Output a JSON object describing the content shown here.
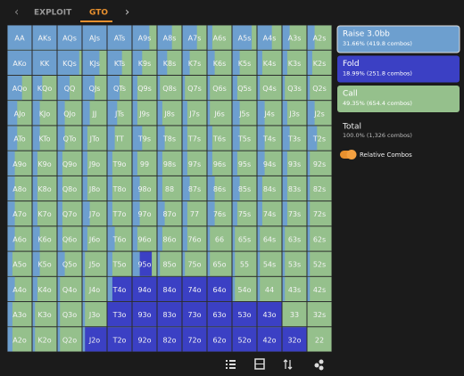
{
  "tabs": [
    "EXPLOIT",
    "GTO"
  ],
  "colors": {
    "raise": "#6d9fcf",
    "fold": "#3b40c4",
    "call": "#95c08c"
  },
  "grid": {
    "rows": [
      {
        "hands": [
          "AA",
          "AKs",
          "AQs",
          "AJs",
          "ATs",
          "A9s",
          "A8s",
          "A7s",
          "A6s",
          "A5s",
          "A4s",
          "A3s",
          "A2s"
        ],
        "raise": [
          100,
          100,
          100,
          100,
          100,
          70,
          60,
          60,
          20,
          80,
          60,
          30,
          30
        ],
        "fold": [
          0,
          0,
          0,
          0,
          0,
          0,
          0,
          0,
          0,
          0,
          0,
          0,
          0
        ]
      },
      {
        "hands": [
          "AKo",
          "KK",
          "KQs",
          "KJs",
          "KTs",
          "K9s",
          "K8s",
          "K7s",
          "K6s",
          "K5s",
          "K4s",
          "K3s",
          "K2s"
        ],
        "raise": [
          100,
          100,
          90,
          70,
          60,
          40,
          40,
          30,
          30,
          30,
          20,
          20,
          20
        ],
        "fold": [
          0,
          0,
          0,
          0,
          0,
          0,
          0,
          0,
          0,
          0,
          0,
          0,
          0
        ]
      },
      {
        "hands": [
          "AQo",
          "KQo",
          "QQ",
          "QJs",
          "QTs",
          "Q9s",
          "Q8s",
          "Q7s",
          "Q6s",
          "Q5s",
          "Q4s",
          "Q3s",
          "Q2s"
        ],
        "raise": [
          60,
          40,
          50,
          50,
          50,
          20,
          10,
          10,
          10,
          20,
          10,
          10,
          10
        ],
        "fold": [
          0,
          0,
          0,
          0,
          0,
          0,
          0,
          0,
          0,
          0,
          0,
          0,
          0
        ]
      },
      {
        "hands": [
          "AJo",
          "KJo",
          "QJo",
          "JJ",
          "JTs",
          "J9s",
          "J8s",
          "J7s",
          "J6s",
          "J5s",
          "J4s",
          "J3s",
          "J2s"
        ],
        "raise": [
          40,
          30,
          30,
          30,
          40,
          20,
          20,
          20,
          10,
          30,
          30,
          20,
          30
        ],
        "fold": [
          0,
          0,
          0,
          0,
          0,
          0,
          0,
          0,
          0,
          0,
          0,
          0,
          0
        ]
      },
      {
        "hands": [
          "ATo",
          "KTo",
          "QTo",
          "JTo",
          "TT",
          "T9s",
          "T8s",
          "T7s",
          "T6s",
          "T5s",
          "T4s",
          "T3s",
          "T2s"
        ],
        "raise": [
          40,
          30,
          30,
          20,
          30,
          40,
          30,
          20,
          20,
          30,
          30,
          30,
          40
        ],
        "fold": [
          0,
          0,
          0,
          0,
          0,
          0,
          0,
          0,
          0,
          0,
          0,
          0,
          0
        ]
      },
      {
        "hands": [
          "A9o",
          "K9o",
          "Q9o",
          "J9o",
          "T9o",
          "99",
          "98s",
          "97s",
          "96s",
          "95s",
          "94s",
          "93s",
          "92s"
        ],
        "raise": [
          30,
          20,
          20,
          20,
          20,
          20,
          20,
          20,
          20,
          20,
          30,
          20,
          10
        ],
        "fold": [
          0,
          0,
          0,
          0,
          0,
          0,
          0,
          0,
          0,
          0,
          0,
          0,
          0
        ]
      },
      {
        "hands": [
          "A8o",
          "K8o",
          "Q8o",
          "J8o",
          "T8o",
          "98o",
          "88",
          "87s",
          "86s",
          "85s",
          "84s",
          "83s",
          "82s"
        ],
        "raise": [
          30,
          20,
          20,
          20,
          20,
          30,
          20,
          30,
          30,
          30,
          20,
          20,
          10
        ],
        "fold": [
          0,
          0,
          0,
          0,
          0,
          0,
          0,
          0,
          0,
          0,
          0,
          0,
          0
        ]
      },
      {
        "hands": [
          "A7o",
          "K7o",
          "Q7o",
          "J7o",
          "T7o",
          "97o",
          "87o",
          "77",
          "76s",
          "75s",
          "74s",
          "73s",
          "72s"
        ],
        "raise": [
          30,
          20,
          20,
          30,
          20,
          30,
          30,
          20,
          30,
          20,
          20,
          20,
          10
        ],
        "fold": [
          0,
          0,
          0,
          0,
          0,
          0,
          0,
          0,
          0,
          0,
          0,
          0,
          0
        ]
      },
      {
        "hands": [
          "A6o",
          "K6o",
          "Q6o",
          "J6o",
          "T6o",
          "96o",
          "86o",
          "76o",
          "66",
          "65s",
          "64s",
          "63s",
          "62s"
        ],
        "raise": [
          30,
          30,
          20,
          20,
          30,
          20,
          20,
          20,
          10,
          10,
          10,
          10,
          10
        ],
        "fold": [
          0,
          0,
          0,
          0,
          0,
          0,
          0,
          0,
          0,
          0,
          0,
          0,
          0
        ]
      },
      {
        "hands": [
          "A5o",
          "K5o",
          "Q5o",
          "J5o",
          "T5o",
          "95o",
          "85o",
          "75o",
          "65o",
          "55",
          "54s",
          "53s",
          "52s"
        ],
        "raise": [
          20,
          30,
          30,
          10,
          20,
          30,
          10,
          10,
          10,
          10,
          10,
          10,
          10
        ],
        "fold": [
          0,
          0,
          0,
          0,
          0,
          50,
          0,
          0,
          0,
          0,
          0,
          0,
          0
        ]
      },
      {
        "hands": [
          "A4o",
          "K4o",
          "Q4o",
          "J4o",
          "T4o",
          "94o",
          "84o",
          "74o",
          "64o",
          "54o",
          "44",
          "43s",
          "42s"
        ],
        "raise": [
          30,
          20,
          10,
          10,
          20,
          0,
          0,
          0,
          0,
          10,
          10,
          10,
          10
        ],
        "fold": [
          0,
          0,
          0,
          0,
          80,
          100,
          100,
          100,
          100,
          0,
          0,
          0,
          0
        ]
      },
      {
        "hands": [
          "A3o",
          "K3o",
          "Q3o",
          "J3o",
          "T3o",
          "93o",
          "83o",
          "73o",
          "63o",
          "53o",
          "43o",
          "33",
          "32s"
        ],
        "raise": [
          20,
          10,
          10,
          10,
          0,
          0,
          0,
          0,
          0,
          0,
          0,
          0,
          0
        ],
        "fold": [
          0,
          0,
          0,
          0,
          100,
          100,
          100,
          100,
          100,
          100,
          100,
          0,
          0
        ]
      },
      {
        "hands": [
          "A2o",
          "K2o",
          "Q2o",
          "J2o",
          "T2o",
          "92o",
          "82o",
          "72o",
          "62o",
          "52o",
          "42o",
          "32o",
          "22"
        ],
        "raise": [
          20,
          10,
          10,
          10,
          0,
          0,
          0,
          0,
          0,
          0,
          0,
          0,
          0
        ],
        "fold": [
          0,
          0,
          0,
          90,
          100,
          100,
          100,
          100,
          100,
          100,
          100,
          100,
          0
        ]
      }
    ]
  },
  "actions": [
    {
      "name": "Raise 3.0bb",
      "detail": "31.66% (419.8 combos)",
      "color": "#6d9fcf"
    },
    {
      "name": "Fold",
      "detail": "18.99% (251.8 combos)",
      "color": "#3b40c4"
    },
    {
      "name": "Call",
      "detail": "49.35% (654.4 combos)",
      "color": "#95c08c"
    }
  ],
  "total": {
    "label": "Total",
    "detail": "100.0% (1,326 combos)"
  },
  "toggle": "Relative Combos"
}
